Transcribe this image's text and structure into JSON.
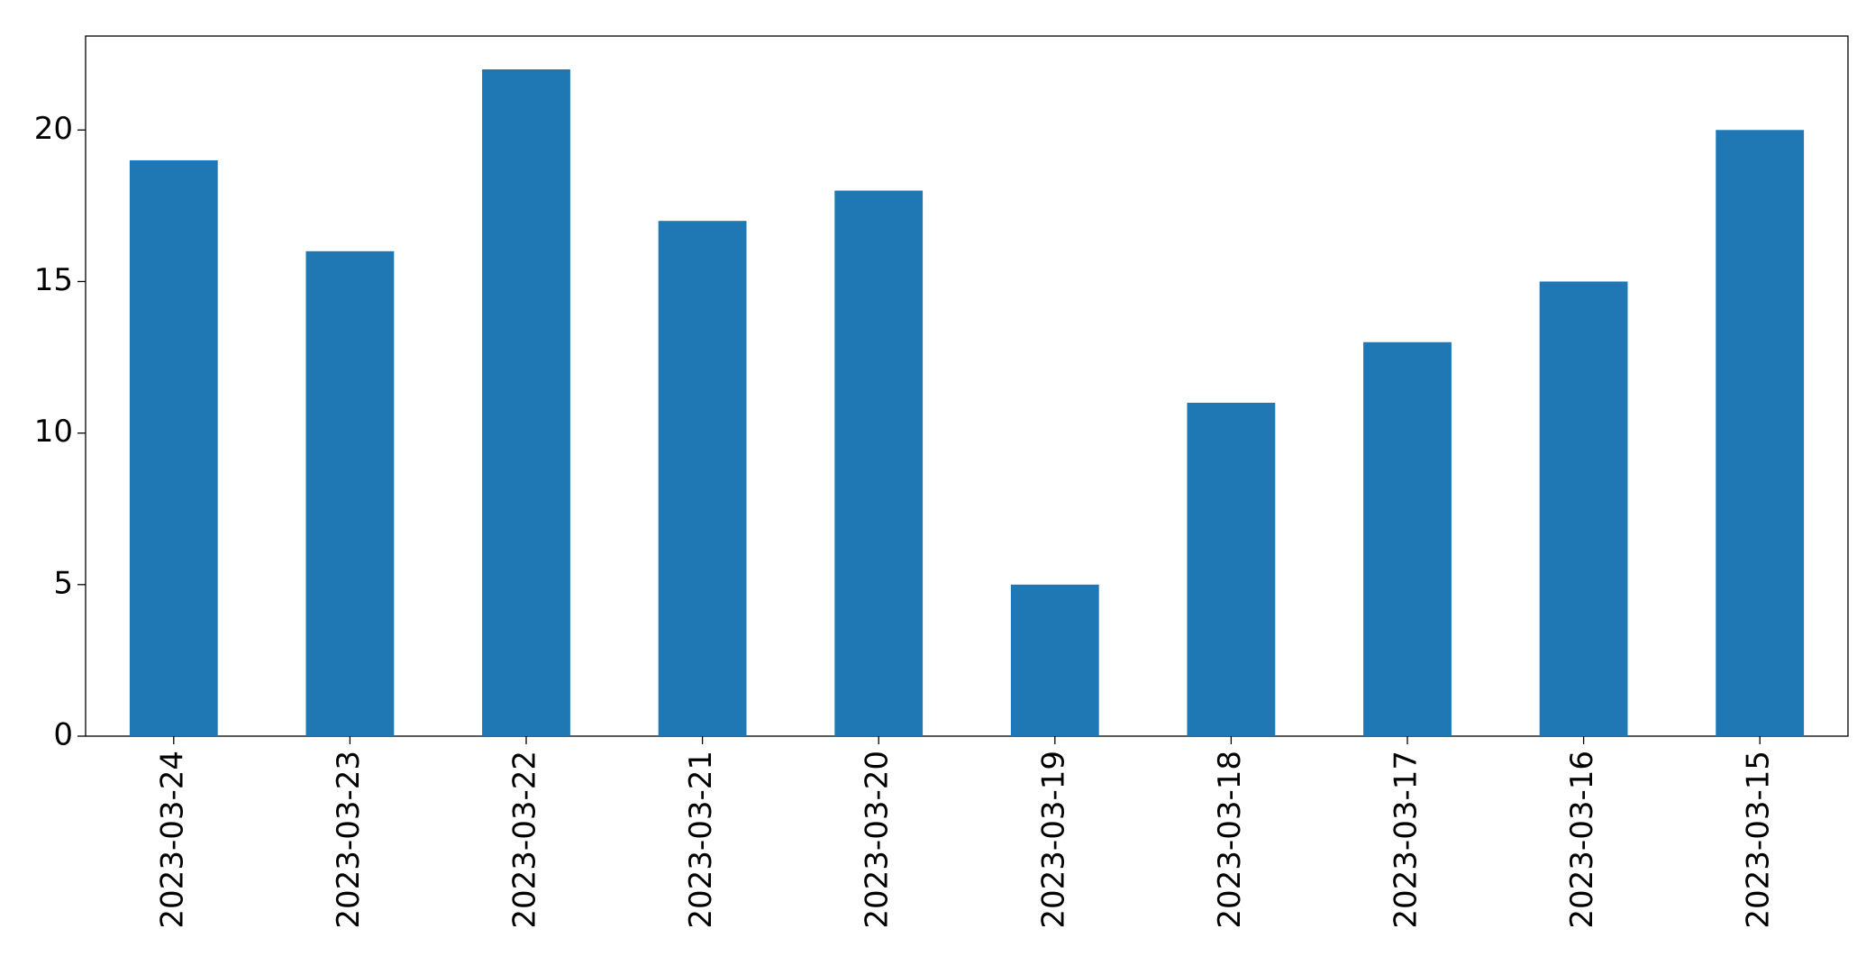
{
  "chart_data": {
    "type": "bar",
    "categories": [
      "2023-03-24",
      "2023-03-23",
      "2023-03-22",
      "2023-03-21",
      "2023-03-20",
      "2023-03-19",
      "2023-03-18",
      "2023-03-17",
      "2023-03-16",
      "2023-03-15"
    ],
    "values": [
      19,
      16,
      22,
      17,
      18,
      5,
      11,
      13,
      15,
      20
    ],
    "color": "#1f77b4",
    "ylim": [
      0,
      23.1
    ],
    "yticks": [
      0,
      5,
      10,
      15,
      20
    ],
    "grid": false
  }
}
